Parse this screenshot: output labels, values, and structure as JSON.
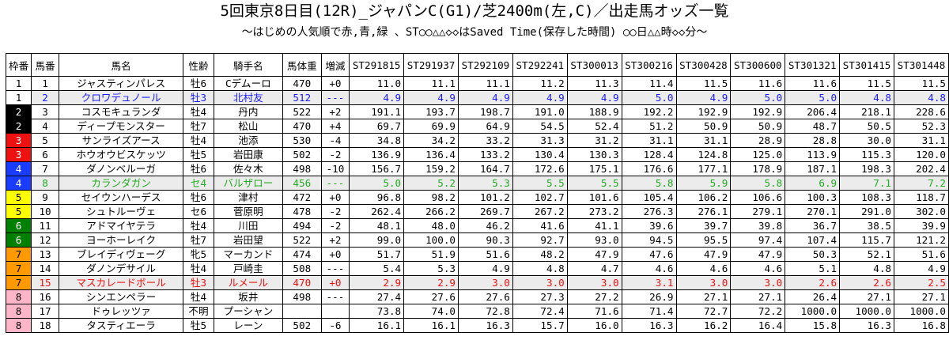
{
  "title": "5回東京8日目(12R)_ジャパンC(G1)/芝2400m(左,C)／出走馬オッズ一覧",
  "subtitle": "～はじめの人気順で赤,青,緑 、ST○○△△◇◇はSaved Time(保存した時間) ○○日△△時◇◇分～",
  "headers": [
    "枠番",
    "馬番",
    "馬名",
    "性齢",
    "騎手名",
    "馬体重",
    "増減",
    "ST291815",
    "ST291937",
    "ST292109",
    "ST292241",
    "ST300013",
    "ST300216",
    "ST300428",
    "ST300600",
    "ST301321",
    "ST301415",
    "ST301448"
  ],
  "colors": {
    "waku": {
      "1": "#ffffff",
      "2": "#000000",
      "3": "#ee1111",
      "4": "#1a3cff",
      "5": "#ffff00",
      "6": "#008000",
      "7": "#ff9900",
      "8": "#ffb6c8"
    },
    "waku_text": {
      "1": "#000000",
      "2": "#ffffff",
      "3": "#ffffff",
      "4": "#ffffff",
      "5": "#000000",
      "6": "#ffffff",
      "7": "#000000",
      "8": "#000000"
    },
    "highlight_row_bg": "#ececec",
    "favorite_1": "#ee1111",
    "favorite_2": "#1a1aff",
    "favorite_3": "#22aa22"
  },
  "rows": [
    {
      "waku": "1",
      "num": "1",
      "name": "ジャスティンパレス",
      "sexage": "牡6",
      "jockey": "Cデムーロ",
      "weight": "470",
      "diff": "+0",
      "odds": [
        "11.0",
        "11.1",
        "11.1",
        "11.2",
        "11.3",
        "11.4",
        "11.5",
        "11.6",
        "11.6",
        "11.5",
        "11.5"
      ],
      "style": ""
    },
    {
      "waku": "1",
      "num": "2",
      "name": "クロワデュノール",
      "sexage": "牡3",
      "jockey": "北村友",
      "weight": "512",
      "diff": "---",
      "odds": [
        "4.9",
        "4.9",
        "4.9",
        "4.9",
        "4.9",
        "5.0",
        "4.9",
        "5.0",
        "5.0",
        "4.8",
        "4.8"
      ],
      "style": "blue"
    },
    {
      "waku": "2",
      "num": "3",
      "name": "コスモキュランダ",
      "sexage": "牡4",
      "jockey": "丹内",
      "weight": "522",
      "diff": "+2",
      "odds": [
        "191.1",
        "193.7",
        "198.7",
        "191.0",
        "188.9",
        "192.2",
        "192.9",
        "192.9",
        "206.4",
        "218.1",
        "228.6"
      ],
      "style": ""
    },
    {
      "waku": "2",
      "num": "4",
      "name": "ディープモンスター",
      "sexage": "牡7",
      "jockey": "松山",
      "weight": "470",
      "diff": "+4",
      "odds": [
        "69.7",
        "69.9",
        "64.9",
        "54.5",
        "52.4",
        "51.2",
        "50.9",
        "50.9",
        "48.7",
        "50.5",
        "52.3"
      ],
      "style": ""
    },
    {
      "waku": "3",
      "num": "5",
      "name": "サンライズアース",
      "sexage": "牡4",
      "jockey": "池添",
      "weight": "530",
      "diff": "-4",
      "odds": [
        "34.8",
        "34.2",
        "33.2",
        "31.3",
        "31.2",
        "31.1",
        "31.1",
        "28.9",
        "28.8",
        "30.0",
        "31.1"
      ],
      "style": ""
    },
    {
      "waku": "3",
      "num": "6",
      "name": "ホウオウビスケッツ",
      "sexage": "牡5",
      "jockey": "岩田康",
      "weight": "502",
      "diff": "-2",
      "odds": [
        "136.9",
        "136.4",
        "133.2",
        "130.4",
        "130.3",
        "128.4",
        "124.8",
        "125.0",
        "113.9",
        "115.3",
        "120.0"
      ],
      "style": ""
    },
    {
      "waku": "4",
      "num": "7",
      "name": "ダノンベルーガ",
      "sexage": "牡6",
      "jockey": "佐々木",
      "weight": "498",
      "diff": "-10",
      "odds": [
        "156.7",
        "159.2",
        "164.7",
        "172.6",
        "175.1",
        "176.6",
        "177.1",
        "178.9",
        "187.1",
        "198.3",
        "202.4"
      ],
      "style": ""
    },
    {
      "waku": "4",
      "num": "8",
      "name": "カランダガン",
      "sexage": "セ4",
      "jockey": "バルザロー",
      "weight": "456",
      "diff": "---",
      "odds": [
        "5.0",
        "5.2",
        "5.3",
        "5.5",
        "5.5",
        "5.8",
        "5.9",
        "5.8",
        "6.9",
        "7.1",
        "7.2"
      ],
      "style": "green"
    },
    {
      "waku": "5",
      "num": "9",
      "name": "セイウンハーデス",
      "sexage": "牡6",
      "jockey": "津村",
      "weight": "472",
      "diff": "+0",
      "odds": [
        "96.8",
        "98.2",
        "101.2",
        "102.7",
        "101.6",
        "105.4",
        "106.2",
        "106.6",
        "100.3",
        "108.3",
        "118.7"
      ],
      "style": ""
    },
    {
      "waku": "5",
      "num": "10",
      "name": "シュトルーヴェ",
      "sexage": "セ6",
      "jockey": "菅原明",
      "weight": "478",
      "diff": "-2",
      "odds": [
        "262.4",
        "266.2",
        "269.7",
        "267.2",
        "273.2",
        "276.3",
        "276.1",
        "279.1",
        "270.1",
        "291.0",
        "302.0"
      ],
      "style": ""
    },
    {
      "waku": "6",
      "num": "11",
      "name": "アドマイヤテラ",
      "sexage": "牡4",
      "jockey": "川田",
      "weight": "494",
      "diff": "-2",
      "odds": [
        "48.1",
        "48.0",
        "46.2",
        "41.6",
        "41.1",
        "39.6",
        "39.7",
        "39.8",
        "36.7",
        "38.5",
        "39.9"
      ],
      "style": ""
    },
    {
      "waku": "6",
      "num": "12",
      "name": "ヨーホーレイク",
      "sexage": "牡7",
      "jockey": "岩田望",
      "weight": "522",
      "diff": "+2",
      "odds": [
        "99.0",
        "100.0",
        "90.3",
        "92.7",
        "93.0",
        "94.5",
        "95.5",
        "97.4",
        "107.4",
        "115.7",
        "121.2"
      ],
      "style": ""
    },
    {
      "waku": "7",
      "num": "13",
      "name": "ブレイディヴェーグ",
      "sexage": "牝5",
      "jockey": "マーカンド",
      "weight": "474",
      "diff": "+0",
      "odds": [
        "51.7",
        "51.9",
        "51.6",
        "48.2",
        "47.9",
        "47.6",
        "47.9",
        "47.9",
        "50.3",
        "52.1",
        "51.6"
      ],
      "style": ""
    },
    {
      "waku": "7",
      "num": "14",
      "name": "ダノンデサイル",
      "sexage": "牡4",
      "jockey": "戸崎圭",
      "weight": "508",
      "diff": "---",
      "odds": [
        "5.4",
        "5.3",
        "4.9",
        "4.8",
        "4.7",
        "4.6",
        "4.6",
        "4.6",
        "5.1",
        "4.8",
        "4.9"
      ],
      "style": ""
    },
    {
      "waku": "7",
      "num": "15",
      "name": "マスカレードボール",
      "sexage": "牡3",
      "jockey": "ルメール",
      "weight": "470",
      "diff": "+0",
      "odds": [
        "2.9",
        "2.9",
        "3.0",
        "3.0",
        "3.0",
        "3.1",
        "3.0",
        "3.0",
        "2.6",
        "2.6",
        "2.5"
      ],
      "style": "red"
    },
    {
      "waku": "8",
      "num": "16",
      "name": "シンエンペラー",
      "sexage": "牡4",
      "jockey": "坂井",
      "weight": "498",
      "diff": "---",
      "odds": [
        "27.4",
        "27.6",
        "27.6",
        "27.3",
        "27.2",
        "26.9",
        "27.1",
        "27.1",
        "26.4",
        "27.1",
        "27.1"
      ],
      "style": ""
    },
    {
      "waku": "8",
      "num": "17",
      "name": "ドゥレッツァ",
      "sexage": "不明",
      "jockey": "プーシャン",
      "weight": "",
      "diff": "",
      "odds": [
        "73.8",
        "74.0",
        "72.8",
        "72.4",
        "71.6",
        "71.4",
        "72.7",
        "72.2",
        "1000.0",
        "1000.0",
        "1000.0"
      ],
      "style": ""
    },
    {
      "waku": "8",
      "num": "18",
      "name": "タスティエーラ",
      "sexage": "牡5",
      "jockey": "レーン",
      "weight": "502",
      "diff": "-6",
      "odds": [
        "16.1",
        "16.1",
        "16.3",
        "15.7",
        "16.0",
        "16.3",
        "16.2",
        "16.4",
        "15.8",
        "16.3",
        "16.8"
      ],
      "style": ""
    }
  ]
}
